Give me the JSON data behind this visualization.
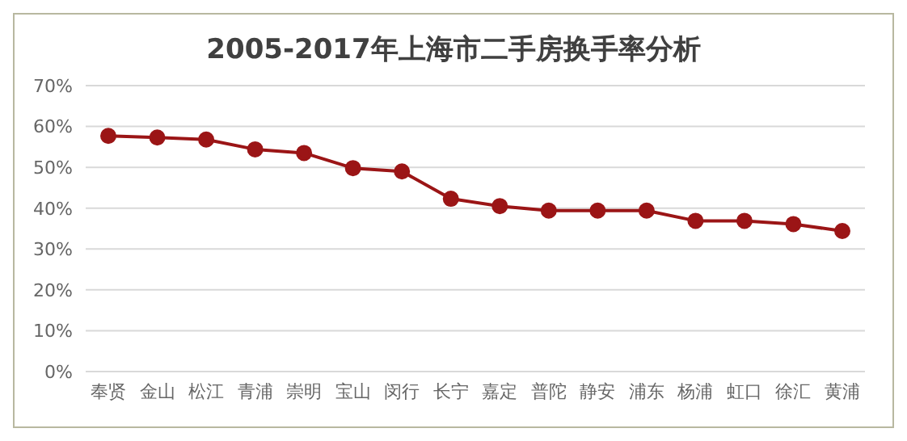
{
  "chart_data": {
    "type": "line",
    "title": "2005-2017年上海市二手房换手率分析",
    "categories": [
      "奉贤",
      "金山",
      "松江",
      "青浦",
      "崇明",
      "宝山",
      "闵行",
      "长宁",
      "嘉定",
      "普陀",
      "静安",
      "浦东",
      "杨浦",
      "虹口",
      "徐汇",
      "黄浦"
    ],
    "series": [
      {
        "color": "#9b1516",
        "values": [
          57.7,
          57.3,
          56.8,
          54.4,
          53.5,
          49.8,
          49,
          42.3,
          40.5,
          39.4,
          39.4,
          39.4,
          36.9,
          36.9,
          36.1,
          34.4
        ]
      }
    ],
    "ylim": [
      0,
      70
    ],
    "yticks": [
      {
        "value": 0,
        "label": "0%"
      },
      {
        "value": 10,
        "label": "10%"
      },
      {
        "value": 20,
        "label": "20%"
      },
      {
        "value": 30,
        "label": "30%"
      },
      {
        "value": 40,
        "label": "40%"
      },
      {
        "value": 50,
        "label": "50%"
      },
      {
        "value": 60,
        "label": "60%"
      },
      {
        "value": 70,
        "label": "70%"
      }
    ],
    "grid": "y",
    "marker": "circle"
  }
}
